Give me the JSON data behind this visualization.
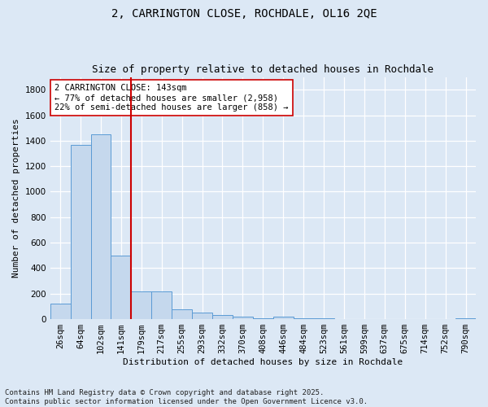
{
  "title1": "2, CARRINGTON CLOSE, ROCHDALE, OL16 2QE",
  "title2": "Size of property relative to detached houses in Rochdale",
  "xlabel": "Distribution of detached houses by size in Rochdale",
  "ylabel": "Number of detached properties",
  "categories": [
    "26sqm",
    "64sqm",
    "102sqm",
    "141sqm",
    "179sqm",
    "217sqm",
    "255sqm",
    "293sqm",
    "332sqm",
    "370sqm",
    "408sqm",
    "446sqm",
    "484sqm",
    "523sqm",
    "561sqm",
    "599sqm",
    "637sqm",
    "675sqm",
    "714sqm",
    "752sqm",
    "790sqm"
  ],
  "values": [
    120,
    1370,
    1450,
    500,
    220,
    220,
    75,
    50,
    30,
    20,
    5,
    20,
    5,
    5,
    0,
    0,
    0,
    0,
    0,
    0,
    5
  ],
  "bar_color": "#c5d8ed",
  "bar_edge_color": "#5b9bd5",
  "vline_color": "#cc0000",
  "vline_x": 3.5,
  "annotation_text": "2 CARRINGTON CLOSE: 143sqm\n← 77% of detached houses are smaller (2,958)\n22% of semi-detached houses are larger (858) →",
  "annotation_box_color": "#ffffff",
  "annotation_box_edge": "#cc0000",
  "ylim": [
    0,
    1900
  ],
  "yticks": [
    0,
    200,
    400,
    600,
    800,
    1000,
    1200,
    1400,
    1600,
    1800
  ],
  "background_color": "#dce8f5",
  "grid_color": "#ffffff",
  "footer": "Contains HM Land Registry data © Crown copyright and database right 2025.\nContains public sector information licensed under the Open Government Licence v3.0.",
  "title_fontsize": 10,
  "subtitle_fontsize": 9,
  "axis_fontsize": 8,
  "tick_fontsize": 7.5,
  "footer_fontsize": 6.5,
  "annot_fontsize": 7.5
}
